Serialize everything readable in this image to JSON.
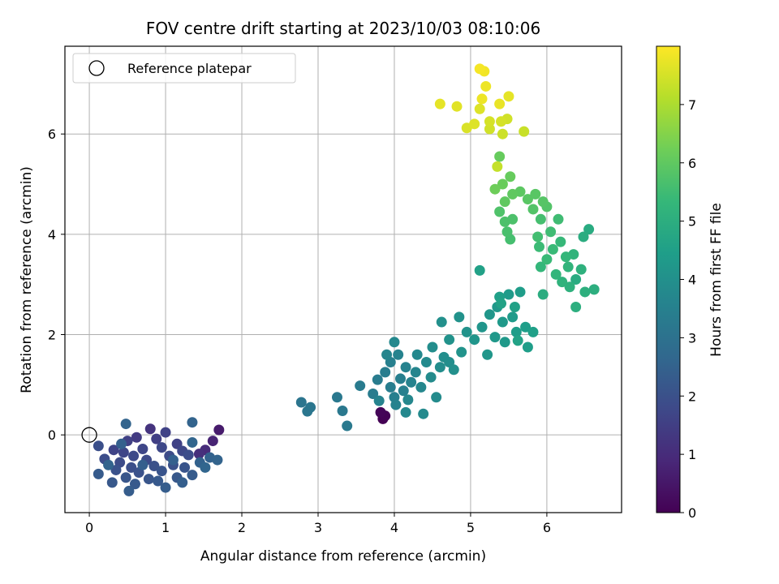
{
  "chart_data": {
    "type": "scatter",
    "title": "FOV centre drift starting at 2023/10/03 08:10:06",
    "xlabel": "Angular distance from reference (arcmin)",
    "ylabel": "Rotation from reference (arcmin)",
    "xlim": [
      -0.32,
      6.98
    ],
    "ylim": [
      -1.55,
      7.75
    ],
    "xticks": [
      0,
      1,
      2,
      3,
      4,
      5,
      6
    ],
    "yticks": [
      0,
      2,
      4,
      6
    ],
    "grid": true,
    "legend": {
      "location": "upper-left",
      "entries": [
        "Reference platepar"
      ]
    },
    "reference_point": {
      "x": 0.0,
      "y": 0.0,
      "label": "Reference platepar",
      "marker": "open-circle"
    },
    "colorbar": {
      "label": "Hours from first FF file",
      "range": [
        0,
        8
      ],
      "ticks": [
        0,
        1,
        2,
        3,
        4,
        5,
        6,
        7
      ],
      "colormap": "viridis",
      "colormap_stops": [
        "#440154",
        "#482878",
        "#3e4989",
        "#31688e",
        "#26828e",
        "#1f9e89",
        "#35b779",
        "#6ece58",
        "#b5de2b",
        "#fde725"
      ]
    },
    "series": [
      {
        "marker": "filled-circle",
        "points": [
          {
            "x": 3.85,
            "y": 0.32,
            "t": 0.0
          },
          {
            "x": 3.88,
            "y": 0.38,
            "t": 0.05
          },
          {
            "x": 3.82,
            "y": 0.45,
            "t": 0.1
          },
          {
            "x": 1.7,
            "y": 0.1,
            "t": 0.6
          },
          {
            "x": 1.62,
            "y": -0.12,
            "t": 0.8
          },
          {
            "x": 1.52,
            "y": -0.3,
            "t": 1.0
          },
          {
            "x": 1.44,
            "y": -0.38,
            "t": 1.1
          },
          {
            "x": 0.8,
            "y": 0.12,
            "t": 1.2
          },
          {
            "x": 0.62,
            "y": -0.05,
            "t": 1.4
          },
          {
            "x": 0.88,
            "y": -0.08,
            "t": 1.5
          },
          {
            "x": 0.5,
            "y": -0.12,
            "t": 1.55
          },
          {
            "x": 1.0,
            "y": 0.05,
            "t": 1.6
          },
          {
            "x": 1.15,
            "y": -0.18,
            "t": 1.6
          },
          {
            "x": 0.32,
            "y": -0.3,
            "t": 1.65
          },
          {
            "x": 0.7,
            "y": -0.28,
            "t": 1.7
          },
          {
            "x": 0.45,
            "y": -0.35,
            "t": 1.7
          },
          {
            "x": 0.95,
            "y": -0.25,
            "t": 1.75
          },
          {
            "x": 1.22,
            "y": -0.32,
            "t": 1.75
          },
          {
            "x": 0.58,
            "y": -0.42,
            "t": 1.8
          },
          {
            "x": 0.75,
            "y": -0.5,
            "t": 1.8
          },
          {
            "x": 0.4,
            "y": -0.55,
            "t": 1.85
          },
          {
            "x": 1.05,
            "y": -0.42,
            "t": 1.85
          },
          {
            "x": 1.3,
            "y": -0.4,
            "t": 1.9
          },
          {
            "x": 0.2,
            "y": -0.48,
            "t": 1.9
          },
          {
            "x": 0.12,
            "y": -0.22,
            "t": 1.95
          },
          {
            "x": 0.55,
            "y": -0.65,
            "t": 1.95
          },
          {
            "x": 0.85,
            "y": -0.62,
            "t": 2.0
          },
          {
            "x": 1.1,
            "y": -0.6,
            "t": 2.0
          },
          {
            "x": 0.35,
            "y": -0.7,
            "t": 2.05
          },
          {
            "x": 0.65,
            "y": -0.75,
            "t": 2.05
          },
          {
            "x": 0.95,
            "y": -0.72,
            "t": 2.1
          },
          {
            "x": 1.25,
            "y": -0.65,
            "t": 2.1
          },
          {
            "x": 0.48,
            "y": -0.85,
            "t": 2.15
          },
          {
            "x": 0.78,
            "y": -0.88,
            "t": 2.15
          },
          {
            "x": 1.15,
            "y": -0.85,
            "t": 2.2
          },
          {
            "x": 0.3,
            "y": -0.95,
            "t": 2.2
          },
          {
            "x": 0.6,
            "y": -0.98,
            "t": 2.25
          },
          {
            "x": 0.9,
            "y": -0.92,
            "t": 2.25
          },
          {
            "x": 1.35,
            "y": -0.8,
            "t": 2.3
          },
          {
            "x": 0.12,
            "y": -0.78,
            "t": 2.3
          },
          {
            "x": 0.52,
            "y": -1.12,
            "t": 2.35
          },
          {
            "x": 1.0,
            "y": -1.05,
            "t": 2.35
          },
          {
            "x": 1.22,
            "y": -0.95,
            "t": 2.4
          },
          {
            "x": 0.7,
            "y": -0.6,
            "t": 2.4
          },
          {
            "x": 0.42,
            "y": -0.18,
            "t": 2.45
          },
          {
            "x": 1.1,
            "y": -0.5,
            "t": 2.45
          },
          {
            "x": 1.45,
            "y": -0.55,
            "t": 2.5
          },
          {
            "x": 1.58,
            "y": -0.45,
            "t": 2.5
          },
          {
            "x": 1.68,
            "y": -0.5,
            "t": 2.55
          },
          {
            "x": 0.25,
            "y": -0.6,
            "t": 2.55
          },
          {
            "x": 0.48,
            "y": 0.22,
            "t": 2.55
          },
          {
            "x": 1.35,
            "y": 0.25,
            "t": 2.55
          },
          {
            "x": 1.52,
            "y": -0.65,
            "t": 2.6
          },
          {
            "x": 1.35,
            "y": -0.15,
            "t": 2.6
          },
          {
            "x": 2.78,
            "y": 0.65,
            "t": 3.1
          },
          {
            "x": 2.9,
            "y": 0.55,
            "t": 3.15
          },
          {
            "x": 2.86,
            "y": 0.47,
            "t": 3.15
          },
          {
            "x": 3.25,
            "y": 0.75,
            "t": 3.2
          },
          {
            "x": 3.32,
            "y": 0.48,
            "t": 3.2
          },
          {
            "x": 3.38,
            "y": 0.18,
            "t": 3.25
          },
          {
            "x": 3.55,
            "y": 0.98,
            "t": 3.3
          },
          {
            "x": 3.72,
            "y": 0.82,
            "t": 3.35
          },
          {
            "x": 3.78,
            "y": 1.1,
            "t": 3.35
          },
          {
            "x": 3.95,
            "y": 0.95,
            "t": 3.4
          },
          {
            "x": 3.88,
            "y": 1.25,
            "t": 3.4
          },
          {
            "x": 4.0,
            "y": 0.75,
            "t": 3.45
          },
          {
            "x": 4.08,
            "y": 1.12,
            "t": 3.45
          },
          {
            "x": 3.95,
            "y": 1.45,
            "t": 3.5
          },
          {
            "x": 4.12,
            "y": 0.88,
            "t": 3.5
          },
          {
            "x": 4.02,
            "y": 0.6,
            "t": 3.55
          },
          {
            "x": 4.15,
            "y": 1.35,
            "t": 3.55
          },
          {
            "x": 3.8,
            "y": 0.68,
            "t": 3.6
          },
          {
            "x": 4.22,
            "y": 1.05,
            "t": 3.6
          },
          {
            "x": 4.05,
            "y": 1.6,
            "t": 3.6
          },
          {
            "x": 3.9,
            "y": 1.6,
            "t": 3.65
          },
          {
            "x": 4.28,
            "y": 1.25,
            "t": 3.65
          },
          {
            "x": 4.18,
            "y": 0.7,
            "t": 3.7
          },
          {
            "x": 4.35,
            "y": 0.95,
            "t": 3.7
          },
          {
            "x": 4.0,
            "y": 1.85,
            "t": 3.75
          },
          {
            "x": 4.3,
            "y": 1.6,
            "t": 3.75
          },
          {
            "x": 4.15,
            "y": 0.45,
            "t": 3.75
          },
          {
            "x": 4.38,
            "y": 0.42,
            "t": 3.8
          },
          {
            "x": 4.42,
            "y": 1.45,
            "t": 3.8
          },
          {
            "x": 4.48,
            "y": 1.15,
            "t": 3.85
          },
          {
            "x": 4.55,
            "y": 0.75,
            "t": 3.85
          },
          {
            "x": 4.5,
            "y": 1.75,
            "t": 3.9
          },
          {
            "x": 4.6,
            "y": 1.35,
            "t": 3.9
          },
          {
            "x": 4.65,
            "y": 1.55,
            "t": 3.95
          },
          {
            "x": 4.72,
            "y": 1.45,
            "t": 3.95
          },
          {
            "x": 4.78,
            "y": 1.3,
            "t": 4.0
          },
          {
            "x": 4.62,
            "y": 2.25,
            "t": 4.0
          },
          {
            "x": 4.72,
            "y": 1.9,
            "t": 4.05
          },
          {
            "x": 4.85,
            "y": 2.35,
            "t": 4.05
          },
          {
            "x": 4.88,
            "y": 1.65,
            "t": 4.1
          },
          {
            "x": 4.95,
            "y": 2.05,
            "t": 4.1
          },
          {
            "x": 5.05,
            "y": 1.9,
            "t": 4.15
          },
          {
            "x": 5.15,
            "y": 2.15,
            "t": 4.15
          },
          {
            "x": 5.25,
            "y": 2.4,
            "t": 4.2
          },
          {
            "x": 5.22,
            "y": 1.6,
            "t": 4.2
          },
          {
            "x": 5.32,
            "y": 1.95,
            "t": 4.25
          },
          {
            "x": 5.35,
            "y": 2.55,
            "t": 4.25
          },
          {
            "x": 5.42,
            "y": 2.25,
            "t": 4.3
          },
          {
            "x": 5.45,
            "y": 1.85,
            "t": 4.3
          },
          {
            "x": 5.5,
            "y": 2.8,
            "t": 4.35
          },
          {
            "x": 5.55,
            "y": 2.35,
            "t": 4.35
          },
          {
            "x": 5.6,
            "y": 2.05,
            "t": 4.4
          },
          {
            "x": 5.65,
            "y": 2.85,
            "t": 4.4
          },
          {
            "x": 5.72,
            "y": 2.15,
            "t": 4.45
          },
          {
            "x": 5.75,
            "y": 1.75,
            "t": 4.45
          },
          {
            "x": 5.82,
            "y": 2.05,
            "t": 4.5
          },
          {
            "x": 5.38,
            "y": 2.75,
            "t": 4.5
          },
          {
            "x": 5.12,
            "y": 3.28,
            "t": 4.55
          },
          {
            "x": 5.58,
            "y": 2.55,
            "t": 4.55
          },
          {
            "x": 5.62,
            "y": 1.88,
            "t": 4.6
          },
          {
            "x": 5.4,
            "y": 2.62,
            "t": 4.6
          },
          {
            "x": 5.32,
            "y": 4.9,
            "t": 6.2
          },
          {
            "x": 5.42,
            "y": 5.0,
            "t": 6.15
          },
          {
            "x": 5.52,
            "y": 5.15,
            "t": 6.1
          },
          {
            "x": 5.38,
            "y": 5.55,
            "t": 6.1
          },
          {
            "x": 5.45,
            "y": 4.65,
            "t": 6.0
          },
          {
            "x": 5.55,
            "y": 4.8,
            "t": 6.0
          },
          {
            "x": 5.65,
            "y": 4.85,
            "t": 5.95
          },
          {
            "x": 5.75,
            "y": 4.7,
            "t": 5.9
          },
          {
            "x": 5.85,
            "y": 4.8,
            "t": 5.9
          },
          {
            "x": 5.95,
            "y": 4.65,
            "t": 5.85
          },
          {
            "x": 6.0,
            "y": 4.55,
            "t": 5.8
          },
          {
            "x": 5.82,
            "y": 4.5,
            "t": 5.8
          },
          {
            "x": 5.38,
            "y": 4.45,
            "t": 5.75
          },
          {
            "x": 5.45,
            "y": 4.25,
            "t": 5.7
          },
          {
            "x": 5.55,
            "y": 4.3,
            "t": 5.7
          },
          {
            "x": 5.48,
            "y": 4.05,
            "t": 5.65
          },
          {
            "x": 5.52,
            "y": 3.9,
            "t": 5.6
          },
          {
            "x": 5.92,
            "y": 4.3,
            "t": 5.6
          },
          {
            "x": 5.88,
            "y": 3.95,
            "t": 5.55
          },
          {
            "x": 6.05,
            "y": 4.05,
            "t": 5.5
          },
          {
            "x": 6.15,
            "y": 4.3,
            "t": 5.5
          },
          {
            "x": 5.9,
            "y": 3.75,
            "t": 5.45
          },
          {
            "x": 6.08,
            "y": 3.7,
            "t": 5.4
          },
          {
            "x": 6.0,
            "y": 3.5,
            "t": 5.4
          },
          {
            "x": 6.18,
            "y": 3.85,
            "t": 5.35
          },
          {
            "x": 6.25,
            "y": 3.55,
            "t": 5.3
          },
          {
            "x": 5.92,
            "y": 3.35,
            "t": 5.3
          },
          {
            "x": 6.12,
            "y": 3.2,
            "t": 5.25
          },
          {
            "x": 6.28,
            "y": 3.35,
            "t": 5.2
          },
          {
            "x": 6.35,
            "y": 3.6,
            "t": 5.2
          },
          {
            "x": 6.2,
            "y": 3.05,
            "t": 5.15
          },
          {
            "x": 6.3,
            "y": 2.95,
            "t": 5.1
          },
          {
            "x": 6.45,
            "y": 3.3,
            "t": 5.1
          },
          {
            "x": 6.5,
            "y": 2.85,
            "t": 5.05
          },
          {
            "x": 6.62,
            "y": 2.9,
            "t": 5.0
          },
          {
            "x": 6.38,
            "y": 2.55,
            "t": 5.0
          },
          {
            "x": 5.95,
            "y": 2.8,
            "t": 4.95
          },
          {
            "x": 6.48,
            "y": 3.95,
            "t": 4.95
          },
          {
            "x": 6.55,
            "y": 4.1,
            "t": 4.9
          },
          {
            "x": 6.38,
            "y": 3.1,
            "t": 4.9
          },
          {
            "x": 5.12,
            "y": 7.3,
            "t": 7.9
          },
          {
            "x": 5.18,
            "y": 7.25,
            "t": 7.85
          },
          {
            "x": 5.2,
            "y": 6.95,
            "t": 7.8
          },
          {
            "x": 5.15,
            "y": 6.7,
            "t": 7.8
          },
          {
            "x": 5.38,
            "y": 6.6,
            "t": 7.75
          },
          {
            "x": 5.5,
            "y": 6.75,
            "t": 7.7
          },
          {
            "x": 4.6,
            "y": 6.6,
            "t": 7.7
          },
          {
            "x": 4.82,
            "y": 6.55,
            "t": 7.65
          },
          {
            "x": 5.12,
            "y": 6.5,
            "t": 7.6
          },
          {
            "x": 5.05,
            "y": 6.2,
            "t": 7.6
          },
          {
            "x": 4.95,
            "y": 6.12,
            "t": 7.55
          },
          {
            "x": 5.25,
            "y": 6.25,
            "t": 7.5
          },
          {
            "x": 5.4,
            "y": 6.25,
            "t": 7.5
          },
          {
            "x": 5.48,
            "y": 6.3,
            "t": 7.45
          },
          {
            "x": 5.25,
            "y": 6.1,
            "t": 7.45
          },
          {
            "x": 5.42,
            "y": 6.0,
            "t": 7.4
          },
          {
            "x": 5.7,
            "y": 6.05,
            "t": 7.35
          },
          {
            "x": 5.35,
            "y": 5.35,
            "t": 7.3
          }
        ]
      }
    ]
  }
}
